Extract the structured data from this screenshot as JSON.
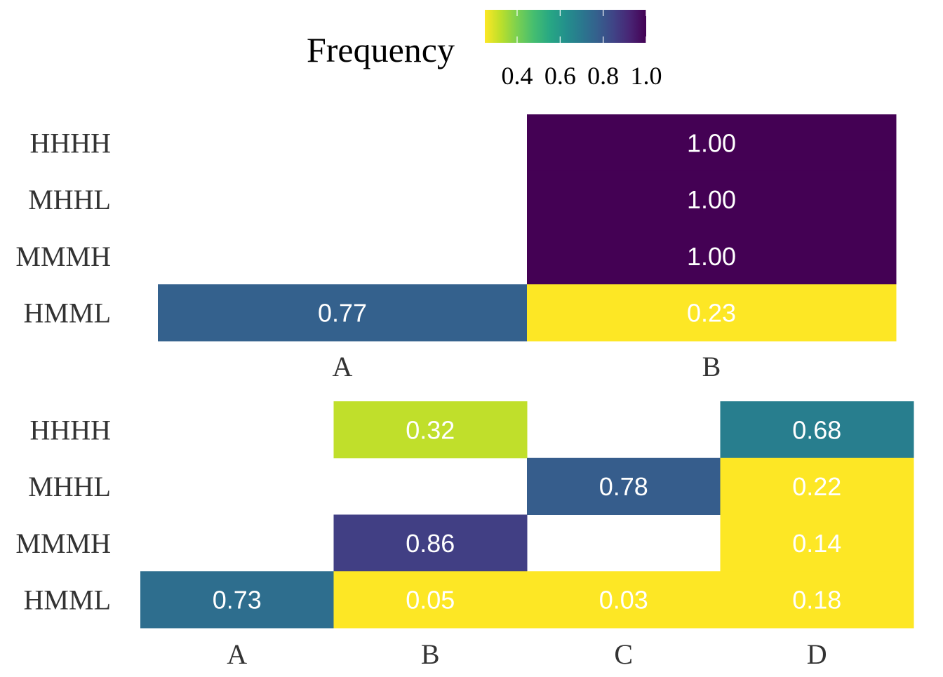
{
  "legend": {
    "title": "Frequency",
    "ticks": [
      "0.4",
      "0.6",
      "0.8",
      "1.0"
    ],
    "tick_values": [
      0.4,
      0.6,
      0.8,
      1.0
    ],
    "domain": [
      0.25,
      1.0
    ],
    "palette": "viridis-reversed"
  },
  "colors": {
    "text_dark": "#333333",
    "cell_text": "#ffffff"
  },
  "chart_data": [
    {
      "type": "heatmap",
      "title": "",
      "xlabel": "",
      "ylabel": "",
      "x_categories": [
        "A",
        "B"
      ],
      "y_categories": [
        "HHHH",
        "MHHL",
        "MMMH",
        "HMML"
      ],
      "cells": [
        {
          "y": "HHHH",
          "x": "B",
          "value": 1.0,
          "label": "1.00"
        },
        {
          "y": "MHHL",
          "x": "B",
          "value": 1.0,
          "label": "1.00"
        },
        {
          "y": "MMMH",
          "x": "B",
          "value": 1.0,
          "label": "1.00"
        },
        {
          "y": "HMML",
          "x": "A",
          "value": 0.77,
          "label": "0.77"
        },
        {
          "y": "HMML",
          "x": "B",
          "value": 0.23,
          "label": "0.23"
        }
      ]
    },
    {
      "type": "heatmap",
      "title": "",
      "xlabel": "",
      "ylabel": "",
      "x_categories": [
        "A",
        "B",
        "C",
        "D"
      ],
      "y_categories": [
        "HHHH",
        "MHHL",
        "MMMH",
        "HMML"
      ],
      "cells": [
        {
          "y": "HHHH",
          "x": "B",
          "value": 0.32,
          "label": "0.32"
        },
        {
          "y": "HHHH",
          "x": "D",
          "value": 0.68,
          "label": "0.68"
        },
        {
          "y": "MHHL",
          "x": "C",
          "value": 0.78,
          "label": "0.78"
        },
        {
          "y": "MHHL",
          "x": "D",
          "value": 0.22,
          "label": "0.22"
        },
        {
          "y": "MMMH",
          "x": "B",
          "value": 0.86,
          "label": "0.86"
        },
        {
          "y": "MMMH",
          "x": "D",
          "value": 0.14,
          "label": "0.14"
        },
        {
          "y": "HMML",
          "x": "A",
          "value": 0.73,
          "label": "0.73"
        },
        {
          "y": "HMML",
          "x": "B",
          "value": 0.05,
          "label": "0.05"
        },
        {
          "y": "HMML",
          "x": "C",
          "value": 0.03,
          "label": "0.03"
        },
        {
          "y": "HMML",
          "x": "D",
          "value": 0.18,
          "label": "0.18"
        }
      ]
    }
  ]
}
